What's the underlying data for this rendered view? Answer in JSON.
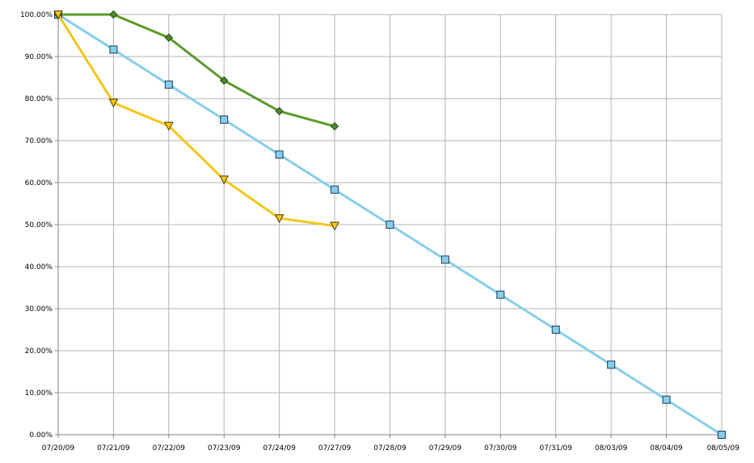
{
  "chart_data": {
    "type": "line",
    "title": "",
    "xlabel": "",
    "ylabel": "",
    "categories": [
      "07/20/09",
      "07/21/09",
      "07/22/09",
      "07/23/09",
      "07/24/09",
      "07/27/09",
      "07/28/09",
      "07/29/09",
      "07/30/09",
      "07/31/09",
      "08/03/09",
      "08/04/09",
      "08/05/09"
    ],
    "y_ticks": [
      "0.00%",
      "10.00%",
      "20.00%",
      "30.00%",
      "40.00%",
      "50.00%",
      "60.00%",
      "70.00%",
      "80.00%",
      "90.00%",
      "100.00%"
    ],
    "ylim": [
      0,
      1
    ],
    "grid": true,
    "legend": "none",
    "series": [
      {
        "color": "#87ceeb",
        "marker": "square",
        "marker_fill": "#87ceeb",
        "values": [
          1.0,
          0.9167,
          0.8333,
          0.75,
          0.6667,
          0.5833,
          0.5,
          0.4167,
          0.3333,
          0.25,
          0.1667,
          0.0833,
          0.0
        ]
      },
      {
        "color": "#5b9a2a",
        "marker": "diamond",
        "marker_fill": "#4f8a2a",
        "values": [
          1.0,
          1.0,
          0.945,
          0.843,
          0.77,
          0.734,
          null,
          null,
          null,
          null,
          null,
          null,
          null
        ]
      },
      {
        "color": "#f5c518",
        "marker": "triangle-down",
        "marker_fill": "#f5c518",
        "values": [
          1.0,
          0.79,
          0.735,
          0.607,
          0.515,
          0.497,
          null,
          null,
          null,
          null,
          null,
          null,
          null
        ]
      }
    ]
  }
}
